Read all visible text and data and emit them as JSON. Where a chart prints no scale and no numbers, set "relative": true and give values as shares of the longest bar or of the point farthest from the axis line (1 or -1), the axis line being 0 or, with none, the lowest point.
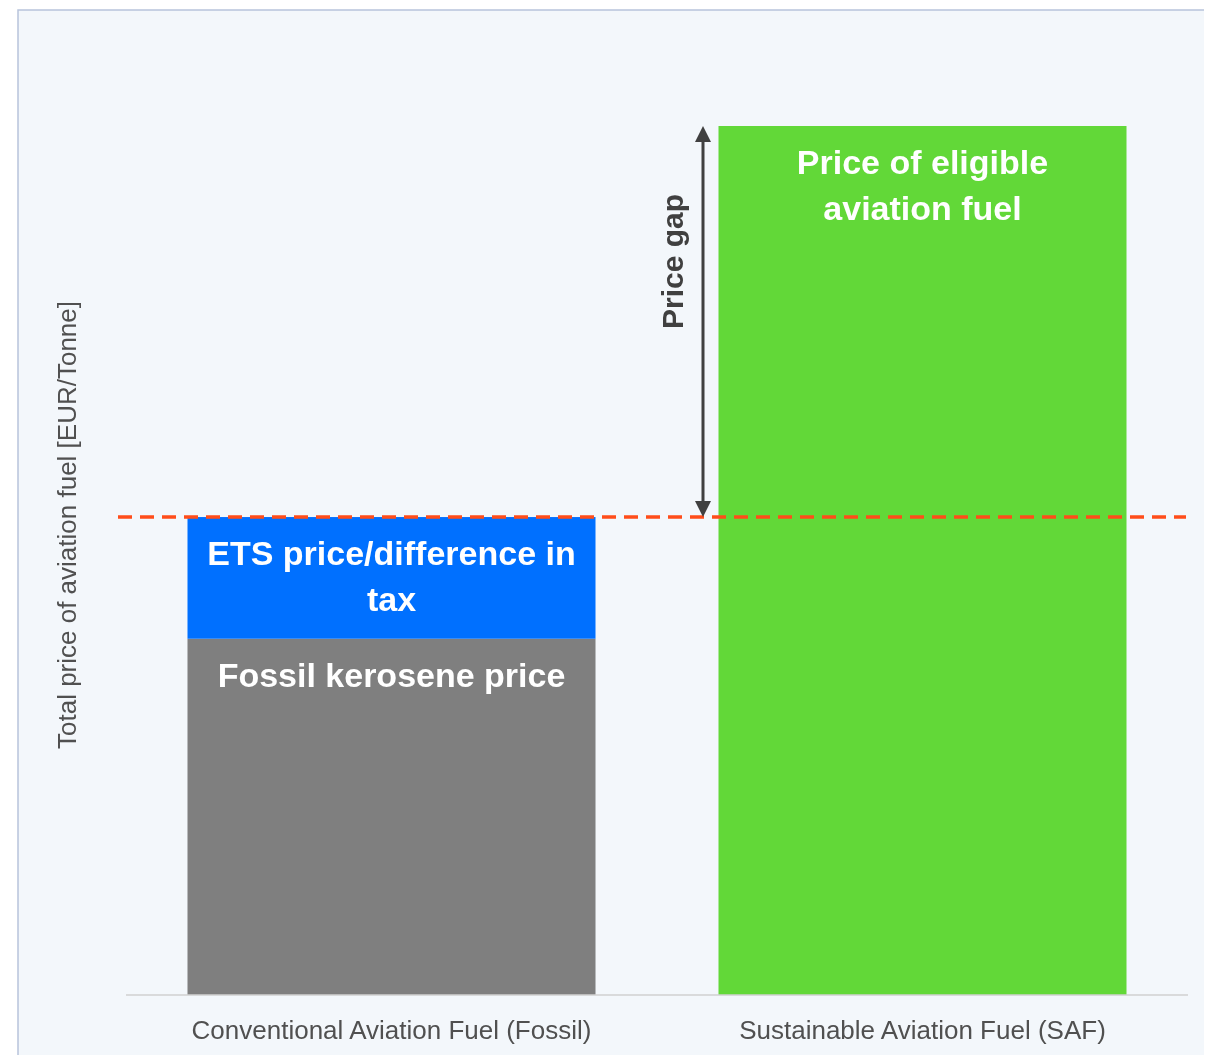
{
  "chart_data": {
    "type": "bar",
    "relative": true,
    "stacked": true,
    "ylabel": "Total price of aviation fuel [EUR/Tonne]",
    "categories": [
      "Conventional Aviation Fuel (Fossil)",
      "Sustainable Aviation Fuel (SAF)"
    ],
    "series": [
      {
        "name": "Fossil kerosene price",
        "color": "#7f7f7f",
        "values": [
          0.41,
          null
        ]
      },
      {
        "name": "ETS price/difference in tax",
        "color": "#0070ff",
        "values": [
          0.14,
          null
        ]
      },
      {
        "name": "Price of eligible aviation fuel",
        "color": "#62d838",
        "values": [
          null,
          1
        ]
      }
    ],
    "ref_lines": [
      {
        "axis": "y",
        "value": 0.55,
        "color": "#ff4d1a",
        "line_style": "dashed"
      }
    ],
    "annotations": [
      "Price gap"
    ]
  }
}
